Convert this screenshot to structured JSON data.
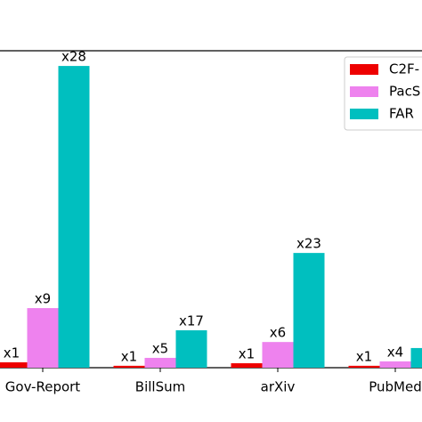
{
  "chart_data": {
    "type": "bar",
    "categories": [
      "Gov-Report",
      "BillSum",
      "arXiv",
      "PubMed"
    ],
    "series": [
      {
        "name": "C2F-",
        "color": "#ee0000",
        "values": [
          1.7,
          0.6,
          1.4,
          0.6
        ],
        "value_labels": [
          "x1",
          "x1",
          "x1",
          "x1"
        ]
      },
      {
        "name": "PacS",
        "color": "#ee82ee",
        "values": [
          18.8,
          3.1,
          8.1,
          2.0
        ],
        "value_labels": [
          "x9",
          "x5",
          "x6",
          "x4"
        ]
      },
      {
        "name": "FAR",
        "color": "#00bfbf",
        "values": [
          95.2,
          11.8,
          36.2,
          6.2
        ],
        "value_labels": [
          "x28",
          "x17",
          "x23",
          null
        ]
      }
    ],
    "ylim": [
      0,
      100
    ],
    "legend": "upper right"
  }
}
